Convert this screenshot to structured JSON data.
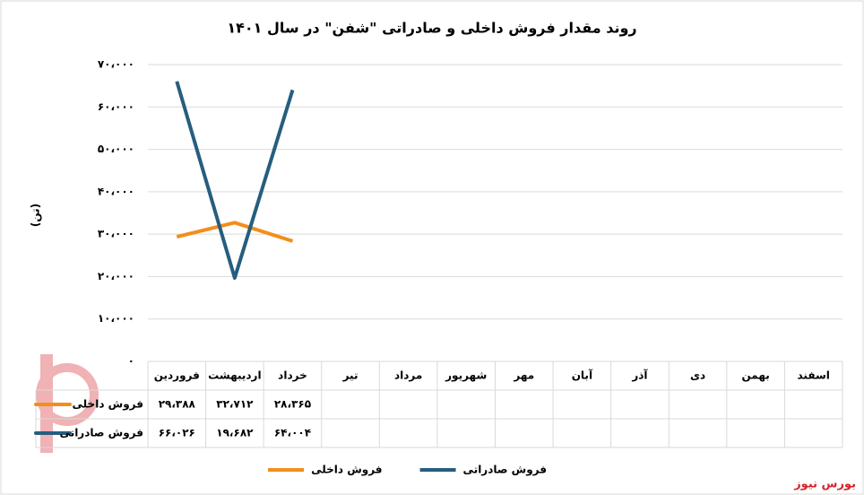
{
  "chart_data": {
    "type": "line",
    "title": "روند مقدار فروش داخلی و صادراتی \"شفن\" در سال ۱۴۰۱",
    "y_label": "(تن)",
    "source": "بورس نیوز",
    "categories": [
      "فروردین",
      "اردیبهشت",
      "خرداد",
      "تیر",
      "مرداد",
      "شهریور",
      "مهر",
      "آبان",
      "آذر",
      "دی",
      "بهمن",
      "اسفند"
    ],
    "series": [
      {
        "name": "فروش داخلی",
        "color": "#f28e1c",
        "values": [
          29388,
          32712,
          28365,
          null,
          null,
          null,
          null,
          null,
          null,
          null,
          null,
          null
        ],
        "value_labels": [
          "۲۹،۳۸۸",
          "۳۲،۷۱۲",
          "۲۸،۳۶۵",
          null,
          null,
          null,
          null,
          null,
          null,
          null,
          null,
          null
        ]
      },
      {
        "name": "فروش صادراتی",
        "color": "#255e7e",
        "values": [
          66026,
          19682,
          64004,
          null,
          null,
          null,
          null,
          null,
          null,
          null,
          null,
          null
        ],
        "value_labels": [
          "۶۶،۰۲۶",
          "۱۹،۶۸۲",
          "۶۴،۰۰۴",
          null,
          null,
          null,
          null,
          null,
          null,
          null,
          null,
          null
        ]
      }
    ],
    "ylim": [
      0,
      70000
    ],
    "yticks": [
      {
        "value": 0,
        "label": "۰"
      },
      {
        "value": 10000,
        "label": "۱۰،۰۰۰"
      },
      {
        "value": 20000,
        "label": "۲۰،۰۰۰"
      },
      {
        "value": 30000,
        "label": "۳۰،۰۰۰"
      },
      {
        "value": 40000,
        "label": "۴۰،۰۰۰"
      },
      {
        "value": 50000,
        "label": "۵۰،۰۰۰"
      },
      {
        "value": 60000,
        "label": "۶۰،۰۰۰"
      },
      {
        "value": 70000,
        "label": "۷۰،۰۰۰"
      }
    ],
    "grid": true
  }
}
